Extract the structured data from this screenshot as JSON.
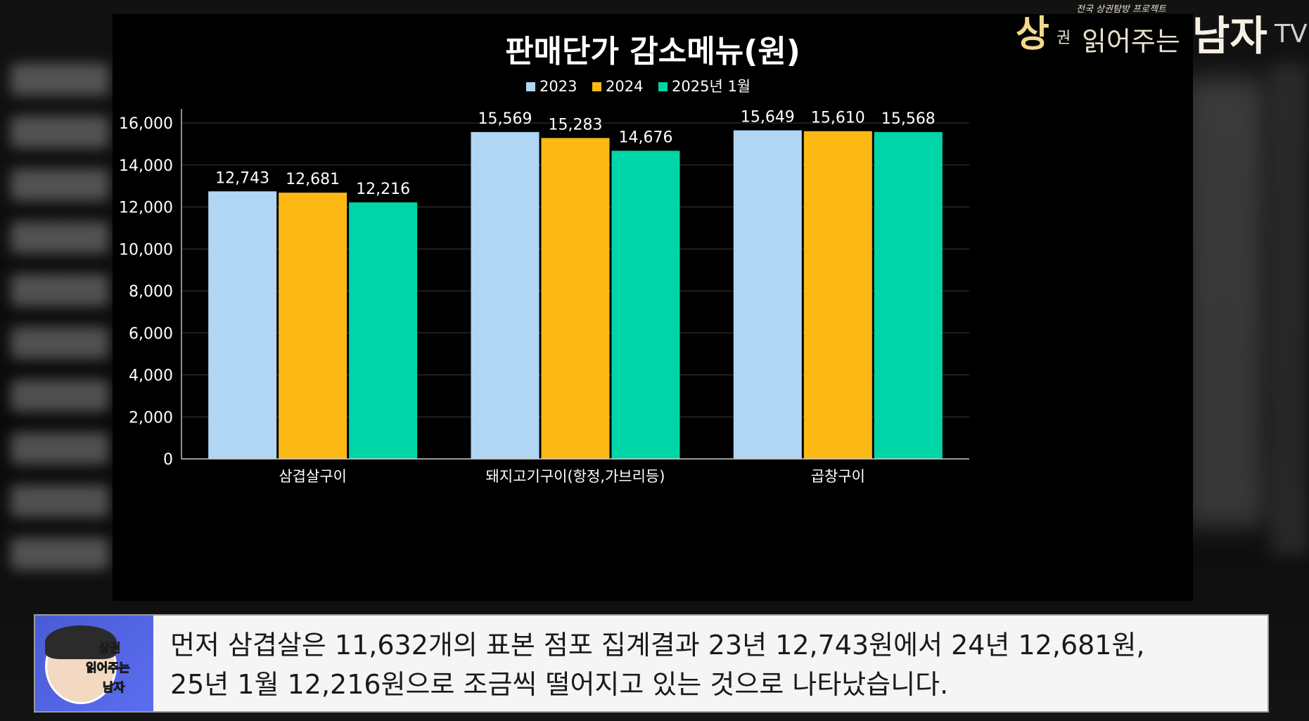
{
  "brand": {
    "name_part1": "상",
    "name_part2": "권",
    "name_part3": "읽어주는",
    "name_part4": "남자",
    "suffix": "TV",
    "tagline": "전국 상권탐방 프로젝트"
  },
  "chart_data": {
    "type": "bar",
    "title": "판매단가 감소메뉴(원)",
    "categories": [
      "삼겹살구이",
      "돼지고기구이(항정,가브리등)",
      "곱창구이"
    ],
    "series": [
      {
        "name": "2023",
        "color": "#b1d6f3",
        "values": [
          12743,
          15569,
          15649
        ],
        "labels": [
          "12,743",
          "15,569",
          "15,649"
        ]
      },
      {
        "name": "2024",
        "color": "#fcb914",
        "values": [
          12681,
          15283,
          15610
        ],
        "labels": [
          "12,681",
          "15,283",
          "15,610"
        ]
      },
      {
        "name": "2025년 1월",
        "color": "#00d5a8",
        "values": [
          12216,
          14676,
          15568
        ],
        "labels": [
          "12,216",
          "14,676",
          "15,568"
        ]
      }
    ],
    "ylim": [
      0,
      16000
    ],
    "yticks": [
      0,
      2000,
      4000,
      6000,
      8000,
      10000,
      12000,
      14000,
      16000
    ],
    "ytick_labels": [
      "0",
      "2,000",
      "4,000",
      "6,000",
      "8,000",
      "10,000",
      "12,000",
      "14,000",
      "16,000"
    ],
    "legend_position": "top-center",
    "grid": true,
    "xlabel": "",
    "ylabel": ""
  },
  "subtitle": {
    "line1": "먼저 삼겹살은 11,632개의 표본 점포 집계결과 23년 12,743원에서 24년 12,681원,",
    "line2": "25년 1월 12,216원으로 조금씩 떨어지고 있는 것으로 나타났습니다."
  },
  "avatar": {
    "text_line1": "상권",
    "text_line2": "읽어주는",
    "text_line3": "남자"
  }
}
